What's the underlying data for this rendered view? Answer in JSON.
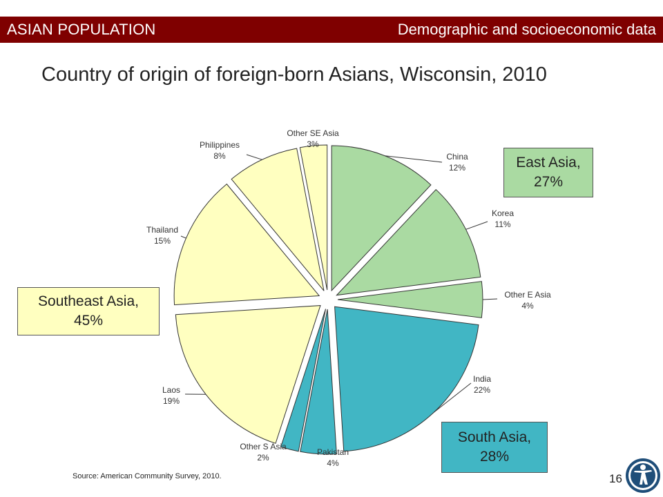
{
  "header": {
    "left": "ASIAN POPULATION",
    "right": "Demographic and socioeconomic data"
  },
  "page_title": "Country of origin of foreign-born Asians, Wisconsin, 2010",
  "region_boxes": {
    "east_asia": {
      "line1": "East Asia,",
      "line2": "27%"
    },
    "south_asia": {
      "line1": "South Asia,",
      "line2": "28%"
    },
    "southeast_asia": {
      "line1": "Southeast Asia,",
      "line2": "45%"
    }
  },
  "footer": {
    "source": "Source: American Community Survey, 2010.",
    "page_number": "16"
  },
  "colors": {
    "header_bg": "#7f0000",
    "east_asia": "#aadaa2",
    "south_asia": "#41b6c4",
    "southeast_asia": "#ffffc0",
    "logo": "#1f4e79"
  },
  "icons": {
    "logo": "person-figure-logo-icon"
  },
  "chart_data": {
    "type": "pie",
    "title": "Country of origin of foreign-born Asians, Wisconsin, 2010",
    "slices": [
      {
        "name": "China",
        "value": 12,
        "label": "12%",
        "group": "east_asia"
      },
      {
        "name": "Korea",
        "value": 11,
        "label": "11%",
        "group": "east_asia"
      },
      {
        "name": "Other E Asia",
        "value": 4,
        "label": "4%",
        "group": "east_asia"
      },
      {
        "name": "India",
        "value": 22,
        "label": "22%",
        "group": "south_asia"
      },
      {
        "name": "Pakistan",
        "value": 4,
        "label": "4%",
        "group": "south_asia"
      },
      {
        "name": "Other S Asia",
        "value": 2,
        "label": "2%",
        "group": "south_asia"
      },
      {
        "name": "Laos",
        "value": 19,
        "label": "19%",
        "group": "southeast_asia"
      },
      {
        "name": "Thailand",
        "value": 15,
        "label": "15%",
        "group": "southeast_asia"
      },
      {
        "name": "Philippines",
        "value": 8,
        "label": "8%",
        "group": "southeast_asia"
      },
      {
        "name": "Other SE Asia",
        "value": 3,
        "label": "3%",
        "group": "southeast_asia"
      }
    ],
    "start_angle": "12 o'clock",
    "direction": "clockwise",
    "exploded": true,
    "groups": [
      {
        "name": "East Asia",
        "value": 27
      },
      {
        "name": "South Asia",
        "value": 28
      },
      {
        "name": "Southeast Asia",
        "value": 45
      }
    ]
  }
}
